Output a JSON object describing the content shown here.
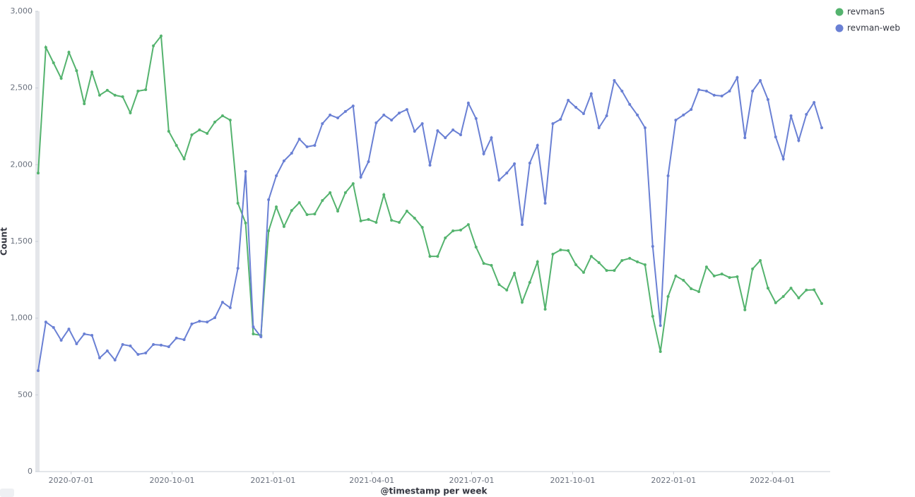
{
  "chart_data": {
    "type": "line",
    "y_label": "Count",
    "x_label": "@timestamp per week",
    "x": [
      "2020-06-01",
      "2020-06-08",
      "2020-06-15",
      "2020-06-22",
      "2020-06-29",
      "2020-07-06",
      "2020-07-13",
      "2020-07-20",
      "2020-07-27",
      "2020-08-03",
      "2020-08-10",
      "2020-08-17",
      "2020-08-24",
      "2020-08-31",
      "2020-09-07",
      "2020-09-14",
      "2020-09-21",
      "2020-09-28",
      "2020-10-05",
      "2020-10-12",
      "2020-10-19",
      "2020-10-26",
      "2020-11-02",
      "2020-11-09",
      "2020-11-16",
      "2020-11-23",
      "2020-11-30",
      "2020-12-07",
      "2020-12-14",
      "2020-12-21",
      "2020-12-28",
      "2021-01-04",
      "2021-01-11",
      "2021-01-18",
      "2021-01-25",
      "2021-02-01",
      "2021-02-08",
      "2021-02-15",
      "2021-02-22",
      "2021-03-01",
      "2021-03-08",
      "2021-03-15",
      "2021-03-22",
      "2021-03-29",
      "2021-04-05",
      "2021-04-12",
      "2021-04-19",
      "2021-04-26",
      "2021-05-03",
      "2021-05-10",
      "2021-05-17",
      "2021-05-24",
      "2021-05-31",
      "2021-06-07",
      "2021-06-14",
      "2021-06-21",
      "2021-06-28",
      "2021-07-05",
      "2021-07-12",
      "2021-07-19",
      "2021-07-26",
      "2021-08-02",
      "2021-08-09",
      "2021-08-16",
      "2021-08-23",
      "2021-08-30",
      "2021-09-06",
      "2021-09-13",
      "2021-09-20",
      "2021-09-27",
      "2021-10-04",
      "2021-10-11",
      "2021-10-18",
      "2021-10-25",
      "2021-11-01",
      "2021-11-08",
      "2021-11-15",
      "2021-11-22",
      "2021-11-29",
      "2021-12-06",
      "2021-12-13",
      "2021-12-20",
      "2021-12-27",
      "2022-01-03",
      "2022-01-10",
      "2022-01-17",
      "2022-01-24",
      "2022-01-31",
      "2022-02-07",
      "2022-02-14",
      "2022-02-21",
      "2022-02-28",
      "2022-03-07",
      "2022-03-14",
      "2022-03-21",
      "2022-03-28",
      "2022-04-04",
      "2022-04-11",
      "2022-04-18",
      "2022-04-25",
      "2022-05-02",
      "2022-05-09",
      "2022-05-16"
    ],
    "series": [
      {
        "name": "revman5",
        "color": "#54b36e",
        "values": [
          1946,
          2765,
          2664,
          2563,
          2733,
          2613,
          2397,
          2604,
          2453,
          2485,
          2453,
          2443,
          2338,
          2480,
          2489,
          2775,
          2839,
          2218,
          2126,
          2038,
          2195,
          2227,
          2204,
          2278,
          2319,
          2291,
          1749,
          1620,
          897,
          888,
          1569,
          1725,
          1597,
          1702,
          1753,
          1675,
          1679,
          1767,
          1818,
          1698,
          1818,
          1877,
          1634,
          1643,
          1624,
          1804,
          1638,
          1624,
          1698,
          1652,
          1592,
          1403,
          1403,
          1523,
          1569,
          1574,
          1610,
          1463,
          1357,
          1344,
          1219,
          1183,
          1293,
          1104,
          1233,
          1367,
          1058,
          1417,
          1445,
          1440,
          1348,
          1298,
          1403,
          1362,
          1311,
          1311,
          1376,
          1390,
          1367,
          1348,
          1012,
          782,
          1141,
          1275,
          1247,
          1192,
          1173,
          1334,
          1275,
          1288,
          1265,
          1270,
          1054,
          1321,
          1376,
          1196,
          1100,
          1141,
          1196,
          1132,
          1183,
          1185,
          1095
        ]
      },
      {
        "name": "revman-web",
        "color": "#6a80d4",
        "values": [
          658,
          975,
          939,
          856,
          929,
          833,
          897,
          888,
          741,
          787,
          727,
          828,
          819,
          764,
          773,
          828,
          824,
          814,
          870,
          860,
          962,
          980,
          975,
          1003,
          1104,
          1068,
          1325,
          1956,
          943,
          879,
          1772,
          1928,
          2025,
          2075,
          2167,
          2117,
          2126,
          2268,
          2324,
          2305,
          2347,
          2383,
          1919,
          2020,
          2273,
          2324,
          2291,
          2337,
          2360,
          2218,
          2268,
          1997,
          2222,
          2176,
          2227,
          2195,
          2402,
          2301,
          2071,
          2176,
          1900,
          1946,
          2006,
          1610,
          2011,
          2126,
          1749,
          2268,
          2296,
          2420,
          2374,
          2333,
          2462,
          2241,
          2319,
          2549,
          2480,
          2393,
          2324,
          2241,
          1468,
          952,
          1928,
          2291,
          2324,
          2360,
          2489,
          2480,
          2453,
          2448,
          2480,
          2568,
          2176,
          2480,
          2549,
          2425,
          2181,
          2038,
          2319,
          2158,
          2328,
          2406,
          2241
        ]
      }
    ],
    "xlim": [
      "2020-06-01",
      "2022-05-16"
    ],
    "xticks": [
      "2020-07-01",
      "2020-10-01",
      "2021-01-01",
      "2021-04-01",
      "2021-07-01",
      "2021-10-01",
      "2022-01-01",
      "2022-04-01"
    ],
    "ylim": [
      0,
      3000
    ],
    "yticks": [
      0,
      500,
      {
        "value": 1000,
        "label": "1,000"
      },
      {
        "value": 1500,
        "label": "1,500"
      },
      {
        "value": 2000,
        "label": "2,000"
      },
      {
        "value": 2500,
        "label": "2,500"
      },
      {
        "value": 3000,
        "label": "3,000"
      }
    ],
    "legend": "top-right",
    "grid": false
  }
}
